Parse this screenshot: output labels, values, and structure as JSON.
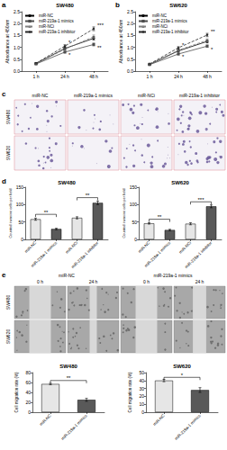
{
  "chart_data": [
    {
      "type": "line",
      "panel_label": "a",
      "title": "SW480",
      "ylabel": "Absorbance at 450nm",
      "categories": [
        "1 h",
        "24 h",
        "48 h"
      ],
      "series": [
        {
          "name": "miR-NC",
          "color": "#000000",
          "marker": "circle",
          "line_style": "solid",
          "values": [
            0.32,
            0.95,
            1.38
          ],
          "errors": [
            0.03,
            0.05,
            0.07
          ]
        },
        {
          "name": "miR-219a-1 mimics",
          "color": "#4d4d4d",
          "marker": "square",
          "line_style": "solid",
          "values": [
            0.3,
            0.8,
            1.12
          ],
          "errors": [
            0.02,
            0.04,
            0.06
          ]
        },
        {
          "name": "miR-NCi",
          "color": "#808080",
          "marker": "triangle",
          "line_style": "dashed",
          "values": [
            0.31,
            0.92,
            1.45
          ],
          "errors": [
            0.03,
            0.05,
            0.07
          ]
        },
        {
          "name": "miR-219a-1 inhibitor",
          "color": "#262626",
          "marker": "diamond",
          "line_style": "dashed",
          "values": [
            0.33,
            1.05,
            1.78
          ],
          "errors": [
            0.03,
            0.06,
            0.08
          ]
        }
      ],
      "ylim": [
        0,
        2.5
      ],
      "yticks": [
        {
          "value": 0,
          "label": "0.0"
        },
        0.5,
        {
          "value": 1,
          "label": "1.0"
        },
        1.5,
        {
          "value": 2,
          "label": "2.0"
        },
        2.5
      ],
      "legend": "upper left",
      "grid": false,
      "annotations": [
        {
          "text": "*",
          "category": "24 h",
          "y": 1.2
        },
        {
          "text": "*",
          "category": "24 h",
          "y": 0.68
        },
        {
          "text": "***",
          "category": "48 h",
          "y": 1.95
        },
        {
          "text": "**",
          "category": "48 h",
          "y": 1.0
        }
      ]
    },
    {
      "type": "line",
      "panel_label": "b",
      "title": "SW620",
      "ylabel": "Absorbance at 450nm",
      "categories": [
        "1 h",
        "24 h",
        "48 h"
      ],
      "series": [
        {
          "name": "miR-NC",
          "color": "#000000",
          "marker": "circle",
          "line_style": "solid",
          "values": [
            0.28,
            0.85,
            1.25
          ],
          "errors": [
            0.02,
            0.05,
            0.06
          ]
        },
        {
          "name": "miR-219a-1 mimics",
          "color": "#4d4d4d",
          "marker": "square",
          "line_style": "solid",
          "values": [
            0.27,
            0.72,
            1.05
          ],
          "errors": [
            0.02,
            0.04,
            0.05
          ]
        },
        {
          "name": "miR-NCi",
          "color": "#808080",
          "marker": "triangle",
          "line_style": "dashed",
          "values": [
            0.29,
            0.88,
            1.3
          ],
          "errors": [
            0.02,
            0.05,
            0.06
          ]
        },
        {
          "name": "miR-219a-1 inhibitor",
          "color": "#262626",
          "marker": "diamond",
          "line_style": "dashed",
          "values": [
            0.3,
            0.98,
            1.52
          ],
          "errors": [
            0.03,
            0.05,
            0.07
          ]
        }
      ],
      "ylim": [
        0,
        2.5
      ],
      "yticks": [
        {
          "value": 0,
          "label": "0.0"
        },
        0.5,
        {
          "value": 1,
          "label": "1.0"
        },
        1.5,
        {
          "value": 2,
          "label": "2.0"
        },
        2.5
      ],
      "legend": "upper left",
      "grid": false,
      "annotations": [
        {
          "text": "*",
          "category": "24 h",
          "y": 1.1
        },
        {
          "text": "*",
          "category": "24 h",
          "y": 0.62
        },
        {
          "text": "**",
          "category": "48 h",
          "y": 1.68
        },
        {
          "text": "*",
          "category": "48 h",
          "y": 0.92
        }
      ]
    },
    {
      "type": "bar",
      "panel_label": "d",
      "title": "SW480",
      "ylabel": "Counted invasive cells per field",
      "categories": [
        "miR-NC",
        "miR-219a-1 mimics",
        "miR-NCi",
        "miR-219a-1 inhibitor"
      ],
      "values": [
        58,
        30,
        62,
        105
      ],
      "errors": [
        3,
        2,
        3,
        5
      ],
      "colors": [
        "#e6e6e6",
        "#595959",
        "#e6e6e6",
        "#595959"
      ],
      "ylim": [
        0,
        150
      ],
      "yticks": [
        0,
        50,
        100,
        150
      ],
      "grid": false,
      "annotations": [
        {
          "text": "**",
          "from": "miR-NC",
          "to": "miR-219a-1 mimics",
          "y": 72
        },
        {
          "text": "**",
          "from": "miR-NCi",
          "to": "miR-219a-1 inhibitor",
          "y": 120
        }
      ]
    },
    {
      "type": "bar",
      "title": "SW620",
      "ylabel": "Counted invasive cells per field",
      "categories": [
        "miR-NC",
        "miR-219a-1 mimics",
        "miR-NCi",
        "miR-219a-1 inhibitor"
      ],
      "values": [
        46,
        27,
        45,
        95
      ],
      "errors": [
        2,
        2,
        3,
        4
      ],
      "colors": [
        "#e6e6e6",
        "#595959",
        "#e6e6e6",
        "#595959"
      ],
      "ylim": [
        0,
        150
      ],
      "yticks": [
        0,
        50,
        100,
        150
      ],
      "grid": false,
      "annotations": [
        {
          "text": "**",
          "from": "miR-NC",
          "to": "miR-219a-1 mimics",
          "y": 58
        },
        {
          "text": "***",
          "from": "miR-NCi",
          "to": "miR-219a-1 inhibitor",
          "y": 108
        }
      ]
    },
    {
      "type": "bar",
      "title": "SW480",
      "ylabel": "Cell migration rate (%)",
      "categories": [
        "miR-NC",
        "miR-219a-1 mimics"
      ],
      "values": [
        57,
        25
      ],
      "errors": [
        1.5,
        3
      ],
      "colors": [
        "#e6e6e6",
        "#595959"
      ],
      "ylim": [
        0,
        80
      ],
      "yticks": [
        0,
        20,
        40,
        60,
        80
      ],
      "grid": false,
      "annotations": [
        {
          "text": "**",
          "from": "miR-NC",
          "to": "miR-219a-1 mimics",
          "y": 64
        }
      ]
    },
    {
      "type": "bar",
      "title": "SW620",
      "ylabel": "Cell migration rate (%)",
      "categories": [
        "miR-NC",
        "miR-219a-1 mimics"
      ],
      "values": [
        40,
        28
      ],
      "errors": [
        1.5,
        3
      ],
      "colors": [
        "#e6e6e6",
        "#595959"
      ],
      "ylim": [
        0,
        50
      ],
      "yticks": [
        0,
        10,
        20,
        30,
        40,
        50
      ],
      "grid": false,
      "annotations": [
        {
          "text": "*",
          "from": "miR-NC",
          "to": "miR-219a-1 mimics",
          "y": 44
        }
      ]
    }
  ],
  "image_panels": [
    {
      "panel_label": "c",
      "columns": [
        "miR-NC",
        "miR-219a-1 mimics",
        "miR-NCi",
        "miR-219a-1 inhibitor"
      ],
      "rows": [
        "SW480",
        "SW620"
      ]
    },
    {
      "panel_label": "e",
      "groups": [
        "miR-NC",
        "miR-219a-1 mimics"
      ],
      "columns": [
        "0 h",
        "24 h",
        "0 h",
        "24 h"
      ],
      "rows": [
        "SW480",
        "SW620"
      ]
    }
  ]
}
